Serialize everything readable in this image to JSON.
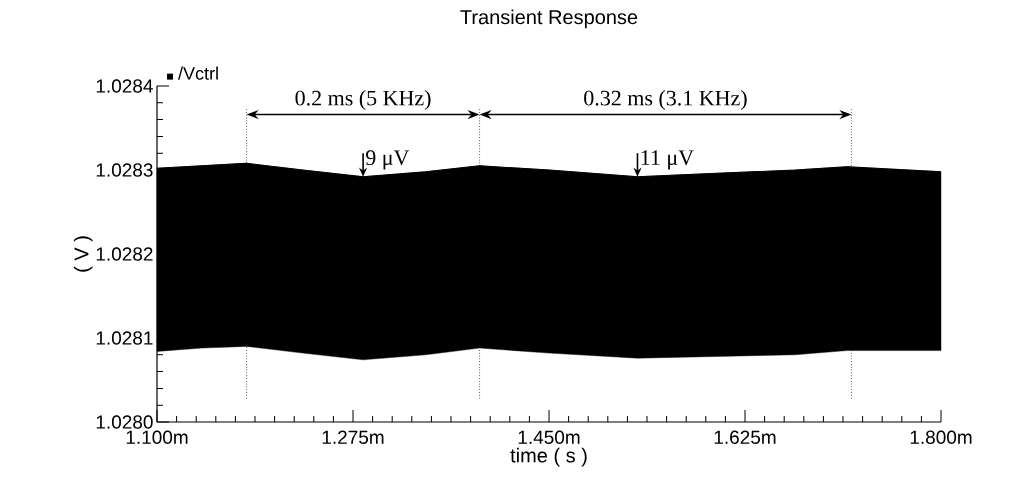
{
  "chart_data": {
    "type": "line",
    "title": "Transient Response",
    "xlabel": "time ( s )",
    "ylabel": "( V )",
    "x": [
      1.1,
      1.14,
      1.18,
      1.23,
      1.284,
      1.34,
      1.388,
      1.45,
      1.529,
      1.6,
      1.67,
      1.716,
      1.8
    ],
    "series": [
      {
        "name": "/Vctrl",
        "color": "#000000",
        "values": [
          1.028302,
          1.028305,
          1.028308,
          1.0283,
          1.028292,
          1.028298,
          1.028305,
          1.0283,
          1.028292,
          1.028296,
          1.0283,
          1.028304,
          1.028298
        ],
        "upper": [
          1.028302,
          1.028305,
          1.028308,
          1.0283,
          1.028292,
          1.028298,
          1.028305,
          1.0283,
          1.028292,
          1.028296,
          1.0283,
          1.028304,
          1.028298
        ],
        "lower": [
          1.028084,
          1.028088,
          1.02809,
          1.028082,
          1.028074,
          1.02808,
          1.028088,
          1.028082,
          1.028076,
          1.028078,
          1.02808,
          1.028085,
          1.028085
        ]
      }
    ],
    "xlim": [
      1.1,
      1.8
    ],
    "xticks": [
      {
        "value": 1.1,
        "label": "1.100m"
      },
      {
        "value": 1.275,
        "label": "1.275m"
      },
      {
        "value": 1.45,
        "label": "1.450m"
      },
      {
        "value": 1.625,
        "label": "1.625m"
      },
      {
        "value": 1.8,
        "label": "1.800m"
      }
    ],
    "ylim": [
      1.028,
      1.0284
    ],
    "yticks": [
      {
        "value": 1.028,
        "label": "1.0280"
      },
      {
        "value": 1.0281,
        "label": "1.0281"
      },
      {
        "value": 1.0282,
        "label": "1.0282"
      },
      {
        "value": 1.0283,
        "label": "1.0283"
      },
      {
        "value": 1.0284,
        "label": "1.0284"
      }
    ],
    "ref_lines": [
      {
        "axis": "x",
        "value": 1.18,
        "line_style": "dotted"
      },
      {
        "axis": "x",
        "value": 1.388,
        "line_style": "dotted"
      },
      {
        "axis": "x",
        "value": 1.72,
        "line_style": "dotted"
      }
    ],
    "annotations": [
      "0.2 ms (5 KHz)",
      "0.32 ms (3.1 KHz)",
      {
        "text": "9 μV",
        "x": 1.284,
        "y": 1.028292
      },
      {
        "text": "11 μV",
        "x": 1.529,
        "y": 1.028292
      }
    ],
    "legend": "top left",
    "grid": false,
    "marker": "none",
    "line_style": "solid"
  }
}
